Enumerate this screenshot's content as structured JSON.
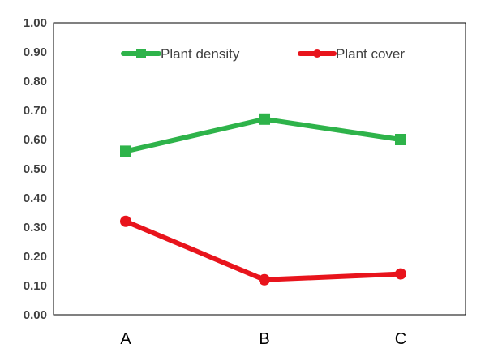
{
  "chart_data": {
    "type": "line",
    "categories": [
      "A",
      "B",
      "C"
    ],
    "series": [
      {
        "name": "Plant density",
        "values": [
          0.56,
          0.67,
          0.6
        ],
        "color": "#2eb34a",
        "marker": "square"
      },
      {
        "name": "Plant cover",
        "values": [
          0.32,
          0.12,
          0.14
        ],
        "color": "#e8141c",
        "marker": "circle"
      }
    ],
    "yticks": [
      "0.00",
      "0.10",
      "0.20",
      "0.30",
      "0.40",
      "0.50",
      "0.60",
      "0.70",
      "0.80",
      "0.90",
      "1.00"
    ],
    "ylim": [
      0,
      1
    ],
    "grid": false,
    "legend_position": "top"
  }
}
